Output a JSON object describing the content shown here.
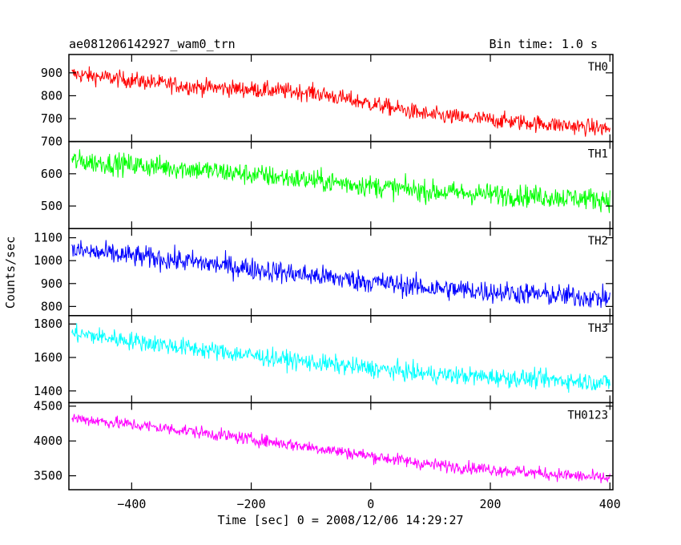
{
  "header": {
    "title": "ae081206142927_wam0_trn",
    "bin_time": "Bin time: 1.0 s"
  },
  "chart_data": {
    "type": "line",
    "ylabel": "Counts/sec",
    "xlabel": "Time [sec] 0 = 2008/12/06 14:29:27",
    "xlim": [
      -505,
      405
    ],
    "x_ticks": [
      -400,
      -200,
      0,
      200,
      400
    ],
    "x_tick_labels": [
      "−400",
      "−200",
      "0",
      "200",
      "400"
    ],
    "panels": [
      {
        "name": "TH0",
        "color": "#ff0000",
        "ylim": [
          600,
          980
        ],
        "y_ticks": [
          700,
          800,
          900
        ],
        "y_tick_labels": [
          "700",
          "800",
          "900"
        ],
        "trend": [
          [
            -500,
            895
          ],
          [
            -300,
            840
          ],
          [
            -100,
            815
          ],
          [
            100,
            715
          ],
          [
            400,
            655
          ]
        ],
        "noise": 30
      },
      {
        "name": "TH1",
        "color": "#00ff00",
        "ylim": [
          430,
          700
        ],
        "y_ticks": [
          500,
          600,
          700
        ],
        "y_tick_labels": [
          "500",
          "600",
          "700"
        ],
        "trend": [
          [
            -500,
            640
          ],
          [
            -300,
            615
          ],
          [
            -100,
            580
          ],
          [
            100,
            545
          ],
          [
            400,
            520
          ]
        ],
        "noise": 28
      },
      {
        "name": "TH2",
        "color": "#0000ff",
        "ylim": [
          760,
          1140
        ],
        "y_ticks": [
          800,
          900,
          1000,
          1100
        ],
        "y_tick_labels": [
          "800",
          "900",
          "1000",
          "1100"
        ],
        "trend": [
          [
            -500,
            1045
          ],
          [
            -300,
            995
          ],
          [
            -100,
            935
          ],
          [
            100,
            880
          ],
          [
            400,
            835
          ]
        ],
        "noise": 40
      },
      {
        "name": "TH3",
        "color": "#00ffff",
        "ylim": [
          1330,
          1850
        ],
        "y_ticks": [
          1400,
          1600,
          1800
        ],
        "y_tick_labels": [
          "1400",
          "1600",
          "1800"
        ],
        "trend": [
          [
            -500,
            1745
          ],
          [
            -300,
            1655
          ],
          [
            -100,
            1570
          ],
          [
            100,
            1500
          ],
          [
            400,
            1450
          ]
        ],
        "noise": 45
      },
      {
        "name": "TH0123",
        "color": "#ff00ff",
        "ylim": [
          3300,
          4550
        ],
        "y_ticks": [
          3500,
          4000,
          4500
        ],
        "y_tick_labels": [
          "3500",
          "4000",
          "4500"
        ],
        "trend": [
          [
            -500,
            4330
          ],
          [
            -300,
            4140
          ],
          [
            -100,
            3910
          ],
          [
            100,
            3660
          ],
          [
            400,
            3460
          ]
        ],
        "noise": 75
      }
    ]
  }
}
